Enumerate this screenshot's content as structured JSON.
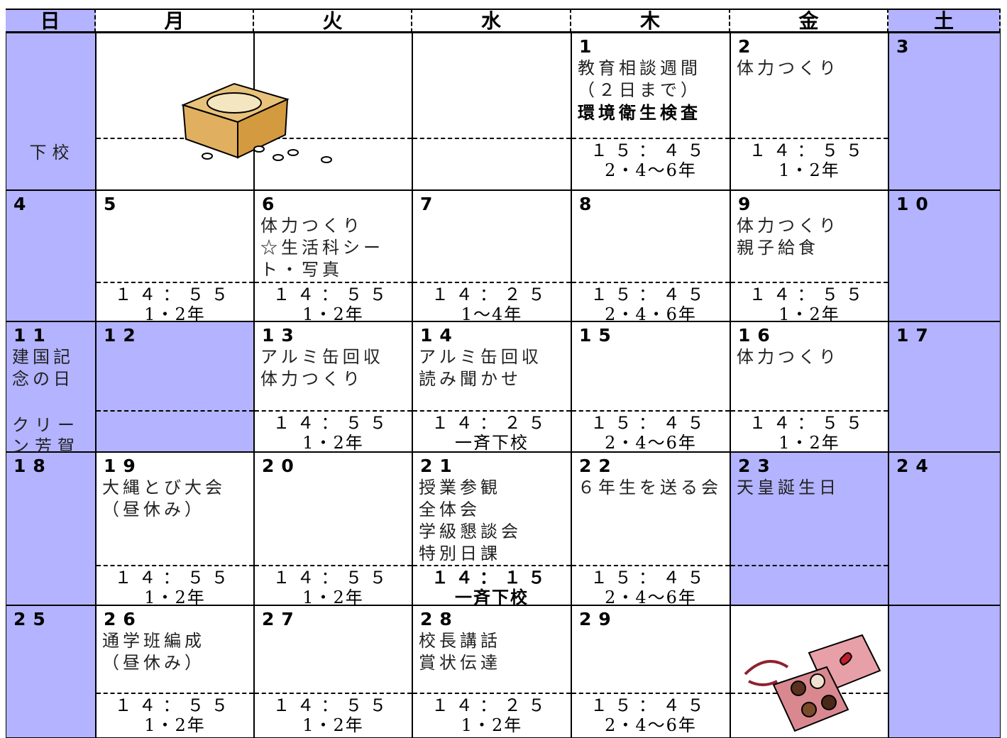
{
  "weekdays": [
    "日",
    "月",
    "火",
    "水",
    "木",
    "金",
    "土"
  ],
  "shaded_columns": [
    0,
    6
  ],
  "weeks": [
    [
      {
        "note": "下校"
      },
      {},
      {},
      {},
      {
        "date": "1",
        "events": [
          "教育相談週間",
          "（２日まで）",
          {
            "text": "環境衛生検査",
            "bold": true
          }
        ],
        "time": "１５：４５",
        "grade": "2・4～6年"
      },
      {
        "date": "2",
        "events": [
          "体力つくり"
        ],
        "time": "１４：５５",
        "grade": "1・2年"
      },
      {
        "date": "3"
      }
    ],
    [
      {
        "date": "4"
      },
      {
        "date": "5",
        "time": "１４：５５",
        "grade": "1・2年"
      },
      {
        "date": "6",
        "events": [
          "体力つくり",
          "☆生活科シート・写真"
        ],
        "time": "１４：５５",
        "grade": "1・2年"
      },
      {
        "date": "7",
        "time": "１４：２５",
        "grade": "1～4年"
      },
      {
        "date": "8",
        "time": "１５：４５",
        "grade": "2・4・6年"
      },
      {
        "date": "9",
        "events": [
          "体力つくり",
          "親子給食"
        ],
        "time": "１４：５５",
        "grade": "1・2年"
      },
      {
        "date": "10"
      }
    ],
    [
      {
        "date": "11",
        "events": [
          "建国記念の日"
        ],
        "note": "クリーン芳賀"
      },
      {
        "date": "12",
        "holiday": true
      },
      {
        "date": "13",
        "events": [
          "アルミ缶回収",
          "体力つくり"
        ],
        "time": "１４：５５",
        "grade": "1・2年"
      },
      {
        "date": "14",
        "events": [
          "アルミ缶回収",
          "読み聞かせ"
        ],
        "time": "１４：２５",
        "grade": "一斉下校"
      },
      {
        "date": "15",
        "time": "１５：４５",
        "grade": "2・4～6年"
      },
      {
        "date": "16",
        "events": [
          "体力つくり"
        ],
        "time": "１４：５５",
        "grade": "1・2年"
      },
      {
        "date": "17"
      }
    ],
    [
      {
        "date": "18"
      },
      {
        "date": "19",
        "events": [
          "大縄とび大会",
          "（昼休み）"
        ],
        "time": "１４：５５",
        "grade": "1・2年"
      },
      {
        "date": "20",
        "time": "１４：５５",
        "grade": "1・2年"
      },
      {
        "date": "21",
        "events": [
          "授業参観",
          "全体会",
          "学級懇談会",
          "特別日課"
        ],
        "time": "１４：１５",
        "grade": "一斉下校",
        "bold": true
      },
      {
        "date": "22",
        "events": [
          "６年生を送る会"
        ],
        "time": "１５：４５",
        "grade": "2・4～6年"
      },
      {
        "date": "23",
        "events": [
          "天皇誕生日"
        ],
        "holiday": true
      },
      {
        "date": "24"
      }
    ],
    [
      {
        "date": "25"
      },
      {
        "date": "26",
        "events": [
          "通学班編成",
          "（昼休み）"
        ],
        "time": "１４：５５",
        "grade": "1・2年"
      },
      {
        "date": "27",
        "time": "１４：５５",
        "grade": "1・2年"
      },
      {
        "date": "28",
        "events": [
          "校長講話",
          "賞状伝達"
        ],
        "time": "１４：２５",
        "grade": "1・2年"
      },
      {
        "date": "29",
        "time": "１５：４５",
        "grade": "2・4～6年"
      },
      {},
      {}
    ]
  ]
}
